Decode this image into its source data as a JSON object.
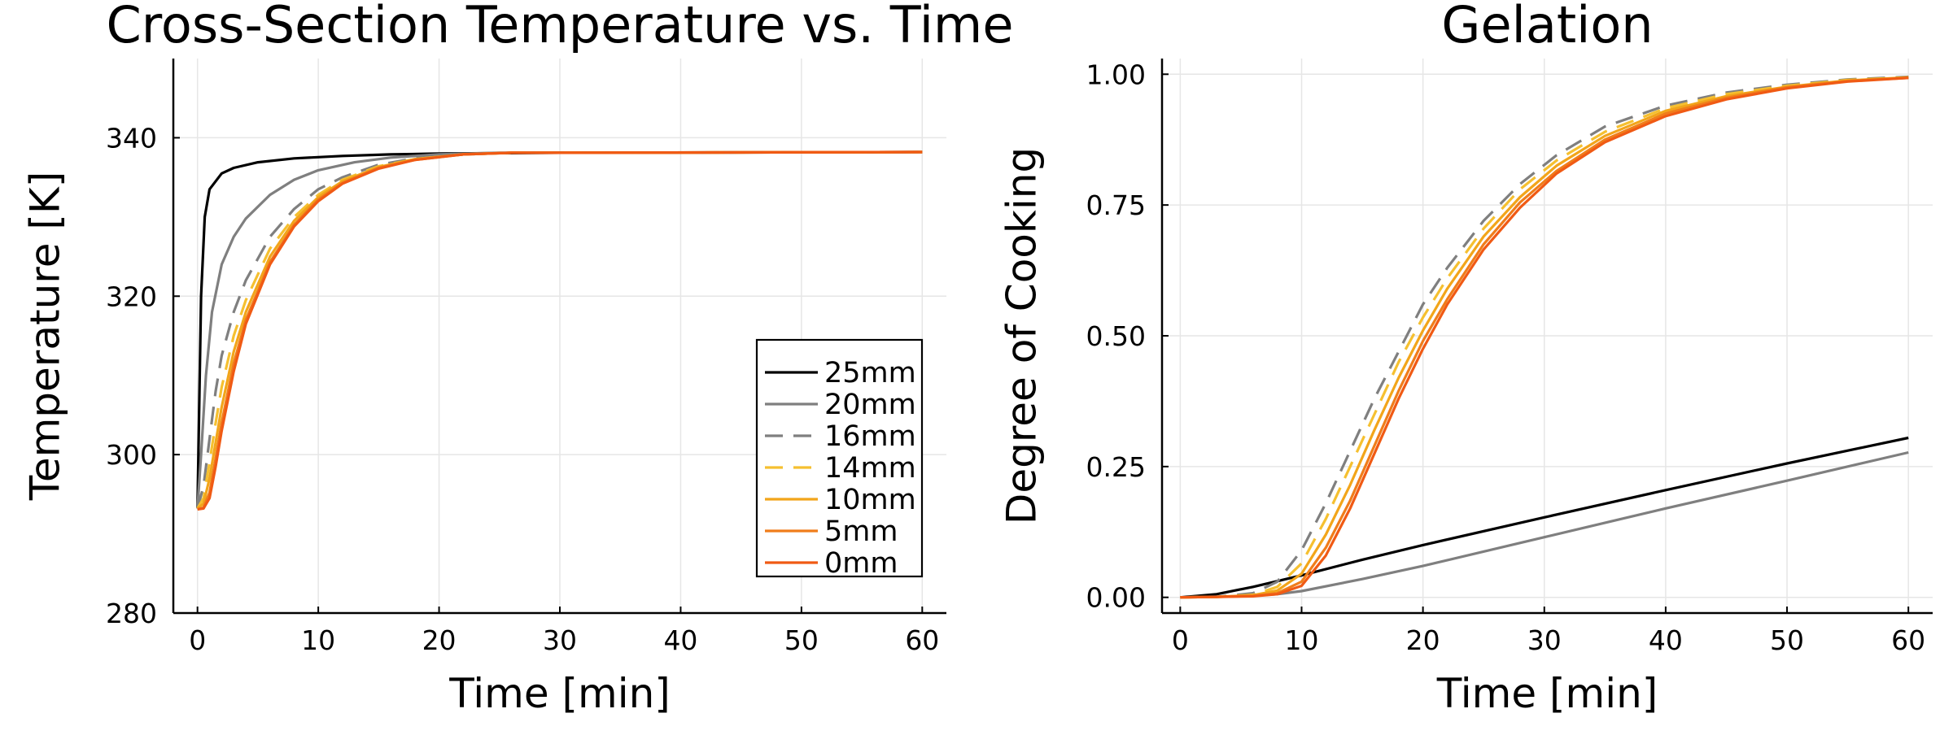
{
  "chart_data": [
    {
      "type": "line",
      "title": "Cross-Section Temperature vs. Time",
      "xlabel": "Time [min]",
      "ylabel": "Temperature [K]",
      "xlim": [
        -2,
        62
      ],
      "ylim": [
        280,
        350
      ],
      "xticks": [
        0,
        10,
        20,
        30,
        40,
        50,
        60
      ],
      "yticks": [
        280,
        300,
        320,
        340
      ],
      "xtick_labels": [
        "0",
        "10",
        "20",
        "30",
        "40",
        "50",
        "60"
      ],
      "ytick_labels": [
        "280",
        "300",
        "320",
        "340"
      ],
      "grid": true,
      "legend_placement": "bottom-right",
      "series": [
        {
          "name": "25mm",
          "color": "#000000",
          "dash": "solid",
          "points": [
            [
              0,
              293.3
            ],
            [
              0.3,
              320
            ],
            [
              0.6,
              330
            ],
            [
              1,
              333.5
            ],
            [
              2,
              335.5
            ],
            [
              3,
              336.2
            ],
            [
              5,
              336.9
            ],
            [
              8,
              337.4
            ],
            [
              12,
              337.7
            ],
            [
              16,
              337.9
            ],
            [
              20,
              338
            ],
            [
              30,
              338.1
            ],
            [
              60,
              338.2
            ]
          ]
        },
        {
          "name": "20mm",
          "color": "#7f7f7f",
          "dash": "solid",
          "points": [
            [
              0,
              293.2
            ],
            [
              0.3,
              300
            ],
            [
              0.7,
              310
            ],
            [
              1.2,
              318
            ],
            [
              2,
              324
            ],
            [
              3,
              327.5
            ],
            [
              4,
              329.8
            ],
            [
              6,
              332.8
            ],
            [
              8,
              334.7
            ],
            [
              10,
              335.9
            ],
            [
              13,
              336.9
            ],
            [
              16,
              337.5
            ],
            [
              20,
              337.9
            ],
            [
              25,
              338.1
            ],
            [
              30,
              338.1
            ],
            [
              60,
              338.2
            ]
          ]
        },
        {
          "name": "16mm",
          "color": "#7f7f7f",
          "dash": "dashed",
          "points": [
            [
              0,
              293.2
            ],
            [
              0.5,
              296
            ],
            [
              1,
              302
            ],
            [
              1.5,
              308
            ],
            [
              2,
              312.5
            ],
            [
              3,
              318
            ],
            [
              4,
              322
            ],
            [
              6,
              327.5
            ],
            [
              8,
              331
            ],
            [
              10,
              333.5
            ],
            [
              12,
              335
            ],
            [
              15,
              336.6
            ],
            [
              18,
              337.4
            ],
            [
              22,
              337.9
            ],
            [
              26,
              338.1
            ],
            [
              30,
              338.1
            ],
            [
              60,
              338.2
            ]
          ]
        },
        {
          "name": "14mm",
          "color": "#f5c030",
          "dash": "dashed",
          "points": [
            [
              0,
              293.2
            ],
            [
              0.5,
              294.5
            ],
            [
              1,
              299
            ],
            [
              1.5,
              304
            ],
            [
              2,
              308.5
            ],
            [
              3,
              315
            ],
            [
              4,
              319.5
            ],
            [
              6,
              326
            ],
            [
              8,
              330
            ],
            [
              10,
              332.8
            ],
            [
              12,
              334.7
            ],
            [
              15,
              336.4
            ],
            [
              18,
              337.3
            ],
            [
              22,
              337.9
            ],
            [
              26,
              338.1
            ],
            [
              30,
              338.1
            ],
            [
              60,
              338.2
            ]
          ]
        },
        {
          "name": "10mm",
          "color": "#f2a51a",
          "dash": "solid",
          "points": [
            [
              0,
              293.2
            ],
            [
              0.5,
              293.8
            ],
            [
              1,
              297
            ],
            [
              1.5,
              301.5
            ],
            [
              2,
              306
            ],
            [
              3,
              313
            ],
            [
              4,
              318
            ],
            [
              6,
              325
            ],
            [
              8,
              329.5
            ],
            [
              10,
              332.5
            ],
            [
              12,
              334.5
            ],
            [
              15,
              336.3
            ],
            [
              18,
              337.3
            ],
            [
              22,
              337.9
            ],
            [
              26,
              338.1
            ],
            [
              30,
              338.1
            ],
            [
              60,
              338.2
            ]
          ]
        },
        {
          "name": "5mm",
          "color": "#f07d1a",
          "dash": "solid",
          "points": [
            [
              0,
              293.1
            ],
            [
              0.5,
              293.3
            ],
            [
              1,
              295.2
            ],
            [
              1.5,
              299.5
            ],
            [
              2,
              304
            ],
            [
              3,
              311.5
            ],
            [
              4,
              317
            ],
            [
              6,
              324.3
            ],
            [
              8,
              329
            ],
            [
              10,
              332.2
            ],
            [
              12,
              334.3
            ],
            [
              15,
              336.2
            ],
            [
              18,
              337.2
            ],
            [
              22,
              337.9
            ],
            [
              26,
              338.1
            ],
            [
              30,
              338.1
            ],
            [
              60,
              338.2
            ]
          ]
        },
        {
          "name": "0mm",
          "color": "#f05a14",
          "dash": "solid",
          "points": [
            [
              0,
              293.1
            ],
            [
              0.5,
              293.2
            ],
            [
              1,
              294.5
            ],
            [
              1.5,
              298.5
            ],
            [
              2,
              303
            ],
            [
              3,
              310.5
            ],
            [
              4,
              316.5
            ],
            [
              6,
              324
            ],
            [
              8,
              328.8
            ],
            [
              10,
              332
            ],
            [
              12,
              334.2
            ],
            [
              15,
              336.1
            ],
            [
              18,
              337.2
            ],
            [
              22,
              337.9
            ],
            [
              26,
              338.1
            ],
            [
              30,
              338.1
            ],
            [
              60,
              338.2
            ]
          ]
        }
      ]
    },
    {
      "type": "line",
      "title": "Gelation",
      "xlabel": "Time [min]",
      "ylabel": "Degree of Cooking",
      "xlim": [
        -1.5,
        62
      ],
      "ylim": [
        -0.03,
        1.03
      ],
      "xticks": [
        0,
        10,
        20,
        30,
        40,
        50,
        60
      ],
      "yticks": [
        0,
        0.25,
        0.5,
        0.75,
        1.0
      ],
      "xtick_labels": [
        "0",
        "10",
        "20",
        "30",
        "40",
        "50",
        "60"
      ],
      "ytick_labels": [
        "0.00",
        "0.25",
        "0.50",
        "0.75",
        "1.00"
      ],
      "grid": true,
      "series": [
        {
          "name": "25mm",
          "color": "#000000",
          "dash": "solid",
          "points": [
            [
              0,
              0
            ],
            [
              3,
              0.006
            ],
            [
              6,
              0.02
            ],
            [
              10,
              0.042
            ],
            [
              15,
              0.072
            ],
            [
              20,
              0.1
            ],
            [
              30,
              0.153
            ],
            [
              40,
              0.205
            ],
            [
              50,
              0.256
            ],
            [
              60,
              0.305
            ]
          ]
        },
        {
          "name": "20mm",
          "color": "#7f7f7f",
          "dash": "solid",
          "points": [
            [
              0,
              0
            ],
            [
              5,
              0.002
            ],
            [
              8,
              0.006
            ],
            [
              10,
              0.012
            ],
            [
              15,
              0.035
            ],
            [
              20,
              0.06
            ],
            [
              30,
              0.115
            ],
            [
              40,
              0.17
            ],
            [
              50,
              0.223
            ],
            [
              60,
              0.277
            ]
          ]
        },
        {
          "name": "16mm",
          "color": "#7f7f7f",
          "dash": "dashed",
          "points": [
            [
              0,
              0
            ],
            [
              3,
              0.001
            ],
            [
              6,
              0.008
            ],
            [
              8,
              0.03
            ],
            [
              10,
              0.09
            ],
            [
              12,
              0.18
            ],
            [
              14,
              0.28
            ],
            [
              16,
              0.38
            ],
            [
              18,
              0.47
            ],
            [
              20,
              0.56
            ],
            [
              22,
              0.63
            ],
            [
              25,
              0.72
            ],
            [
              28,
              0.79
            ],
            [
              31,
              0.845
            ],
            [
              35,
              0.9
            ],
            [
              40,
              0.94
            ],
            [
              45,
              0.965
            ],
            [
              50,
              0.98
            ],
            [
              55,
              0.99
            ],
            [
              60,
              0.995
            ]
          ]
        },
        {
          "name": "14mm",
          "color": "#f5c030",
          "dash": "dashed",
          "points": [
            [
              0,
              0
            ],
            [
              3,
              0.001
            ],
            [
              6,
              0.005
            ],
            [
              8,
              0.02
            ],
            [
              10,
              0.065
            ],
            [
              12,
              0.15
            ],
            [
              14,
              0.25
            ],
            [
              16,
              0.35
            ],
            [
              18,
              0.45
            ],
            [
              20,
              0.535
            ],
            [
              22,
              0.61
            ],
            [
              25,
              0.705
            ],
            [
              28,
              0.78
            ],
            [
              31,
              0.835
            ],
            [
              35,
              0.89
            ],
            [
              40,
              0.935
            ],
            [
              45,
              0.962
            ],
            [
              50,
              0.978
            ],
            [
              55,
              0.989
            ],
            [
              60,
              0.994
            ]
          ]
        },
        {
          "name": "10mm",
          "color": "#f2a51a",
          "dash": "solid",
          "points": [
            [
              0,
              0
            ],
            [
              3,
              0.001
            ],
            [
              6,
              0.004
            ],
            [
              8,
              0.013
            ],
            [
              10,
              0.045
            ],
            [
              12,
              0.12
            ],
            [
              14,
              0.215
            ],
            [
              16,
              0.32
            ],
            [
              18,
              0.42
            ],
            [
              20,
              0.51
            ],
            [
              22,
              0.59
            ],
            [
              25,
              0.69
            ],
            [
              28,
              0.765
            ],
            [
              31,
              0.825
            ],
            [
              35,
              0.882
            ],
            [
              40,
              0.93
            ],
            [
              45,
              0.958
            ],
            [
              50,
              0.976
            ],
            [
              55,
              0.988
            ],
            [
              60,
              0.994
            ]
          ]
        },
        {
          "name": "5mm",
          "color": "#f07d1a",
          "dash": "solid",
          "points": [
            [
              0,
              0
            ],
            [
              3,
              0.001
            ],
            [
              6,
              0.003
            ],
            [
              8,
              0.008
            ],
            [
              10,
              0.03
            ],
            [
              12,
              0.095
            ],
            [
              14,
              0.185
            ],
            [
              16,
              0.29
            ],
            [
              18,
              0.395
            ],
            [
              20,
              0.49
            ],
            [
              22,
              0.57
            ],
            [
              25,
              0.675
            ],
            [
              28,
              0.755
            ],
            [
              31,
              0.815
            ],
            [
              35,
              0.875
            ],
            [
              40,
              0.925
            ],
            [
              45,
              0.955
            ],
            [
              50,
              0.975
            ],
            [
              55,
              0.987
            ],
            [
              60,
              0.993
            ]
          ]
        },
        {
          "name": "0mm",
          "color": "#f05a14",
          "dash": "solid",
          "points": [
            [
              0,
              0
            ],
            [
              3,
              0.001
            ],
            [
              6,
              0.002
            ],
            [
              8,
              0.006
            ],
            [
              10,
              0.022
            ],
            [
              12,
              0.08
            ],
            [
              14,
              0.17
            ],
            [
              16,
              0.275
            ],
            [
              18,
              0.38
            ],
            [
              20,
              0.475
            ],
            [
              22,
              0.56
            ],
            [
              25,
              0.665
            ],
            [
              28,
              0.745
            ],
            [
              31,
              0.81
            ],
            [
              35,
              0.87
            ],
            [
              40,
              0.92
            ],
            [
              45,
              0.952
            ],
            [
              50,
              0.973
            ],
            [
              55,
              0.986
            ],
            [
              60,
              0.993
            ]
          ]
        }
      ]
    }
  ]
}
